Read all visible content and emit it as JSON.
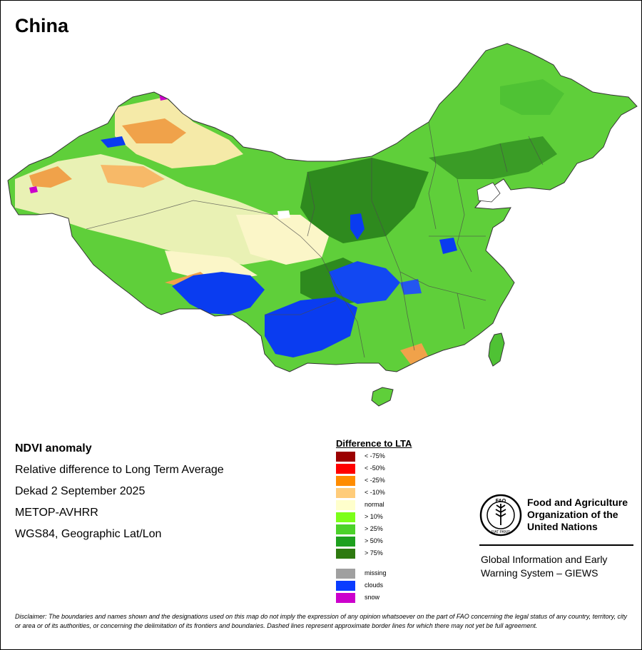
{
  "map": {
    "title": "China",
    "feature_colors": {
      "land_base": "#5fcf3a",
      "dark_green": "#2e8a1e",
      "clouds": "#0a3cf0",
      "normal": "#fff9cf",
      "orange": "#f0a24a",
      "border": "#555555"
    }
  },
  "info": {
    "title": "NDVI anomaly",
    "line1": "Relative difference to Long Term Average",
    "line2": "Dekad 2 September 2025",
    "line3": "METOP-AVHRR",
    "line4": "WGS84, Geographic Lat/Lon"
  },
  "legend": {
    "title": "Difference to LTA",
    "items": [
      {
        "label": "< -75%",
        "color": "#9b0000"
      },
      {
        "label": "< -50%",
        "color": "#ff0000"
      },
      {
        "label": "< -25%",
        "color": "#ff8c00"
      },
      {
        "label": "< -10%",
        "color": "#ffcc7a"
      },
      {
        "label": "normal",
        "color": "#ffffcc"
      },
      {
        "label": "> 10%",
        "color": "#7cff1a"
      },
      {
        "label": "> 25%",
        "color": "#4cd22a"
      },
      {
        "label": "> 50%",
        "color": "#1ea01e"
      },
      {
        "label": "> 75%",
        "color": "#2e7a10"
      },
      {
        "label": "missing",
        "color": "#a0a0a0"
      },
      {
        "label": "clouds",
        "color": "#0a3cff"
      },
      {
        "label": "snow",
        "color": "#cc00cc"
      }
    ]
  },
  "fao": {
    "line1": "Food and Agriculture",
    "line2": "Organization of the",
    "line3": "United Nations",
    "logo_text": "FAO",
    "logo_motto": "FIAT PANIS"
  },
  "giews": {
    "line1": "Global Information and Early",
    "line2": "Warning System – GIEWS"
  },
  "disclaimer": "Disclaimer: The boundaries and names shown and the designations used on this map do not imply the expression of any opinion whatsoever on the part of FAO concerning the legal status of any country, territory, city or area or of its authorities, or concerning the delimitation of its frontiers and boundaries. Dashed lines represent approximate border lines for which there may not yet be full agreement."
}
